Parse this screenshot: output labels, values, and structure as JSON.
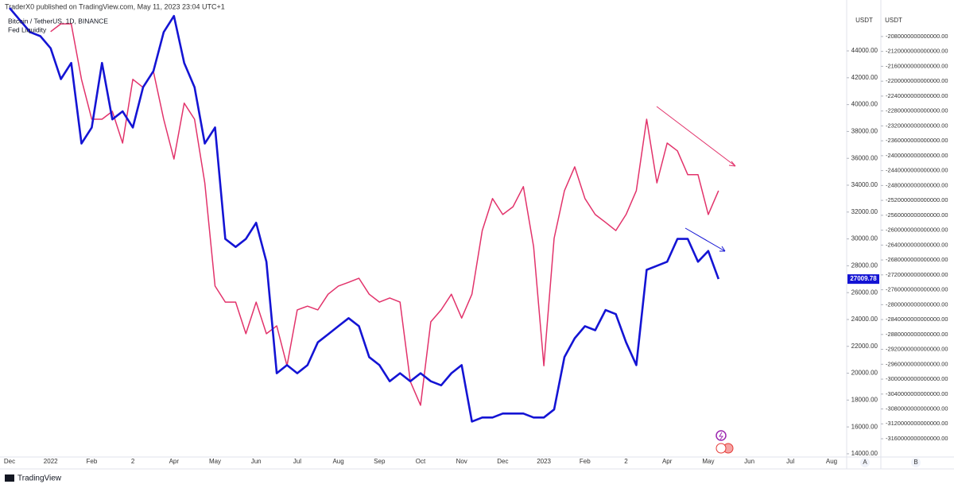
{
  "header": {
    "publisher": "TraderX0 published on TradingView.com, May 11, 2023 23:04 UTC+1",
    "footer": "TradingView"
  },
  "chart_data": {
    "type": "line",
    "y_axis_label": "USDT",
    "y2_axis_label": "USDT",
    "last_price_label": "27009.78",
    "axis_buttons": [
      "A",
      "B"
    ],
    "categories": [
      "Dec",
      null,
      null,
      null,
      "2022",
      null,
      null,
      null,
      "Feb",
      null,
      null,
      null,
      "2",
      null,
      null,
      null,
      "Apr",
      null,
      null,
      null,
      "May",
      null,
      null,
      null,
      "Jun",
      null,
      null,
      null,
      "Jul",
      null,
      null,
      null,
      "Aug",
      null,
      null,
      null,
      "Sep",
      null,
      null,
      null,
      "Oct",
      null,
      null,
      null,
      "Nov",
      null,
      null,
      null,
      "Dec",
      null,
      null,
      null,
      "2023",
      null,
      null,
      null,
      "Feb",
      null,
      null,
      null,
      "2",
      null,
      null,
      null,
      "Apr",
      null,
      null,
      null,
      "May",
      null,
      null,
      null,
      "Jun",
      null,
      null,
      null,
      "Jul",
      null,
      null,
      null,
      "Aug"
    ],
    "series": [
      {
        "name": "Bitcoin / TetherUS, 1D, BINANCE",
        "color": "#1414d4",
        "axis": "y",
        "values": [
          47200,
          46300,
          45400,
          45100,
          44200,
          41900,
          43100,
          37100,
          38300,
          43100,
          38900,
          39500,
          38300,
          41300,
          42500,
          45400,
          46600,
          43100,
          41300,
          37100,
          38300,
          30000,
          29400,
          30000,
          31200,
          28300,
          20000,
          20600,
          20000,
          20600,
          22300,
          22900,
          23500,
          24100,
          23500,
          21200,
          20600,
          19400,
          20000,
          19400,
          20000,
          19400,
          19100,
          20000,
          20600,
          16400,
          16700,
          16700,
          17000,
          17000,
          17000,
          16700,
          16700,
          17300,
          21200,
          22600,
          23500,
          23200,
          24700,
          24400,
          22300,
          20600,
          27700,
          28000,
          28300,
          30000,
          30000,
          28300,
          29100,
          27009.78,
          null,
          null,
          null,
          null,
          null,
          null,
          null,
          null,
          null,
          null,
          null
        ]
      },
      {
        "name": "Fed Liquidity",
        "color": "#e2336b",
        "axis": "y2",
        "values": [
          null,
          null,
          null,
          null,
          -2067000000000000,
          -2046000000000000,
          -2046000000000000,
          -2195000000000000,
          -2302000000000000,
          -2302000000000000,
          -2281000000000000,
          -2366000000000000,
          -2195000000000000,
          -2217000000000000,
          -2174000000000000,
          -2302000000000000,
          -2409000000000000,
          -2259000000000000,
          -2302000000000000,
          -2473000000000000,
          -2750000000000000,
          -2793000000000000,
          -2793000000000000,
          -2878000000000000,
          -2793000000000000,
          -2878000000000000,
          -2857000000000000,
          -2964000000000000,
          -2814000000000000,
          -2804000000000000,
          -2814000000000000,
          -2772000000000000,
          -2750000000000000,
          -2740000000000000,
          -2729000000000000,
          -2772000000000000,
          -2793000000000000,
          -2782000000000000,
          -2793000000000000,
          -3006000000000000,
          -3070000000000000,
          -2846000000000000,
          -2814000000000000,
          -2772000000000000,
          -2836000000000000,
          -2772000000000000,
          -2601000000000000,
          -2515000000000000,
          -2558000000000000,
          -2537000000000000,
          -2483000000000000,
          -2644000000000000,
          -2964000000000000,
          -2622000000000000,
          -2494000000000000,
          -2430000000000000,
          -2515000000000000,
          -2558000000000000,
          -2579000000000000,
          -2601000000000000,
          -2558000000000000,
          -2494000000000000,
          -2302000000000000,
          -2473000000000000,
          -2366000000000000,
          -2387000000000000,
          -2451000000000000,
          -2451000000000000,
          -2558000000000000,
          -2494000000000000,
          null,
          null,
          null,
          null,
          null,
          null,
          null,
          null,
          null,
          null,
          null
        ]
      }
    ],
    "ylim": [
      13760,
      47790
    ],
    "yticks": [
      {
        "value": 14000,
        "label": "14000.00"
      },
      {
        "value": 16000,
        "label": "16000.00"
      },
      {
        "value": 18000,
        "label": "18000.00"
      },
      {
        "value": 20000,
        "label": "20000.00"
      },
      {
        "value": 22000,
        "label": "22000.00"
      },
      {
        "value": 24000,
        "label": "24000.00"
      },
      {
        "value": 26000,
        "label": "26000.00"
      },
      {
        "value": 28000,
        "label": "28000.00"
      },
      {
        "value": 30000,
        "label": "30000.00"
      },
      {
        "value": 32000,
        "label": "32000.00"
      },
      {
        "value": 34000,
        "label": "34000.00"
      },
      {
        "value": 36000,
        "label": "36000.00"
      },
      {
        "value": 38000,
        "label": "38000.00"
      },
      {
        "value": 40000,
        "label": "40000.00"
      },
      {
        "value": 42000,
        "label": "42000.00"
      },
      {
        "value": 44000,
        "label": "44000.00"
      }
    ],
    "y2lim": [
      -3209000000000000,
      -1982000000000000
    ],
    "y2ticks": [
      {
        "value": -2080000000000000,
        "label": "-2080000000000000.00"
      },
      {
        "value": -2120000000000000,
        "label": "-2120000000000000.00"
      },
      {
        "value": -2160000000000000,
        "label": "-2160000000000000.00"
      },
      {
        "value": -2200000000000000,
        "label": "-2200000000000000.00"
      },
      {
        "value": -2240000000000000,
        "label": "-2240000000000000.00"
      },
      {
        "value": -2280000000000000,
        "label": "-2280000000000000.00"
      },
      {
        "value": -2320000000000000,
        "label": "-2320000000000000.00"
      },
      {
        "value": -2360000000000000,
        "label": "-2360000000000000.00"
      },
      {
        "value": -2400000000000000,
        "label": "-2400000000000000.00"
      },
      {
        "value": -2440000000000000,
        "label": "-2440000000000000.00"
      },
      {
        "value": -2480000000000000,
        "label": "-2480000000000000.00"
      },
      {
        "value": -2520000000000000,
        "label": "-2520000000000000.00"
      },
      {
        "value": -2560000000000000,
        "label": "-2560000000000000.00"
      },
      {
        "value": -2600000000000000,
        "label": "-2600000000000000.00"
      },
      {
        "value": -2640000000000000,
        "label": "-2640000000000000.00"
      },
      {
        "value": -2680000000000000,
        "label": "-2680000000000000.00"
      },
      {
        "value": -2720000000000000,
        "label": "-2720000000000000.00"
      },
      {
        "value": -2760000000000000,
        "label": "-2760000000000000.00"
      },
      {
        "value": -2800000000000000,
        "label": "-2800000000000000.00"
      },
      {
        "value": -2840000000000000,
        "label": "-2840000000000000.00"
      },
      {
        "value": -2880000000000000,
        "label": "-2880000000000000.00"
      },
      {
        "value": -2920000000000000,
        "label": "-2920000000000000.00"
      },
      {
        "value": -2960000000000000,
        "label": "-2960000000000000.00"
      },
      {
        "value": -3000000000000000,
        "label": "-3000000000000000.00"
      },
      {
        "value": -3040000000000000,
        "label": "-3040000000000000.00"
      },
      {
        "value": -3080000000000000,
        "label": "-3080000000000000.00"
      },
      {
        "value": -3120000000000000,
        "label": "-3120000000000000.00"
      },
      {
        "value": -3160000000000000,
        "label": "-3160000000000000.00"
      }
    ],
    "grid": false
  }
}
